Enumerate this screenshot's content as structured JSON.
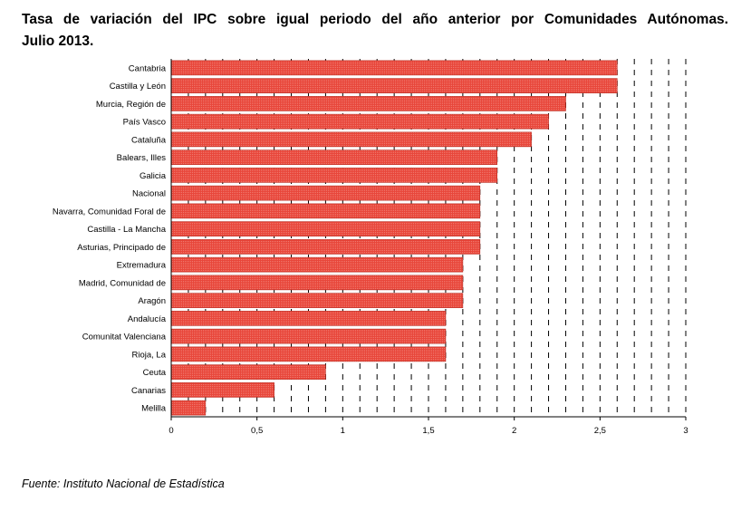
{
  "title_line1": "Tasa de variación del IPC sobre igual periodo del año anterior por Comunidades Autónomas.",
  "title_line2": "Julio 2013.",
  "source": "Fuente: Instituto Nacional de Estadística",
  "colors": {
    "bar": "#E8463A",
    "bar_border": "#B8261C",
    "grid": "#000000"
  },
  "chart_data": {
    "type": "bar",
    "orientation": "horizontal",
    "title": "Tasa de variación del IPC sobre igual periodo del año anterior por Comunidades Autónomas. Julio 2013.",
    "categories": [
      "Cantabria",
      "Castilla y León",
      "Murcia, Región de",
      "País Vasco",
      "Cataluña",
      "Balears, Illes",
      "Galicia",
      "Nacional",
      "Navarra, Comunidad Foral de",
      "Castilla - La Mancha",
      "Asturias, Principado de",
      "Extremadura",
      "Madrid, Comunidad de",
      "Aragón",
      "Andalucía",
      "Comunitat Valenciana",
      "Rioja, La",
      "Ceuta",
      "Canarias",
      "Melilla"
    ],
    "values": [
      2.6,
      2.6,
      2.3,
      2.2,
      2.1,
      1.9,
      1.9,
      1.8,
      1.8,
      1.8,
      1.8,
      1.7,
      1.7,
      1.7,
      1.6,
      1.6,
      1.6,
      0.9,
      0.6,
      0.2
    ],
    "xlim": [
      0,
      3
    ],
    "xticks": [
      0,
      0.5,
      1,
      1.5,
      2,
      2.5,
      3
    ],
    "xtick_labels": [
      "0",
      "0,5",
      "1",
      "1,5",
      "2",
      "2,5",
      "3"
    ],
    "grid": "vertical dashed, every 0.1",
    "legend": "none"
  }
}
